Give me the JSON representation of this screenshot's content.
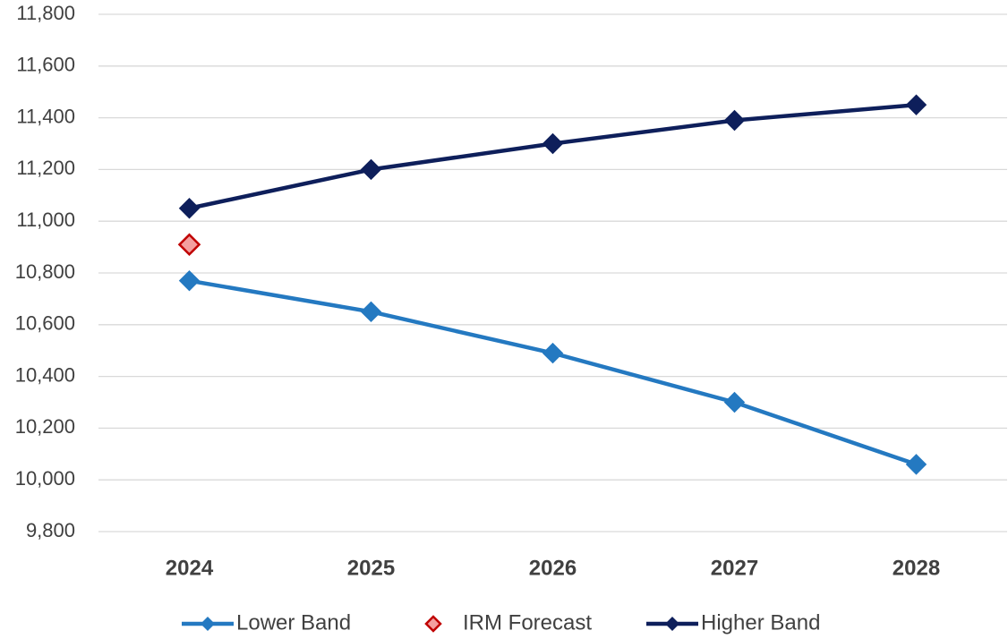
{
  "chart_data": {
    "type": "line",
    "categories": [
      "2024",
      "2025",
      "2026",
      "2027",
      "2028"
    ],
    "series": [
      {
        "name": "Lower Band",
        "color": "#2479c1",
        "line": true,
        "values": [
          10770,
          10650,
          10490,
          10300,
          10060
        ]
      },
      {
        "name": "IRM Forecast",
        "color": "#c00000",
        "fill": "#f4a0a0",
        "line": false,
        "values": [
          10910,
          null,
          null,
          null,
          null
        ]
      },
      {
        "name": "Higher Band",
        "color": "#0e1f5b",
        "line": true,
        "values": [
          11050,
          11200,
          11300,
          11390,
          11450
        ]
      }
    ],
    "ylim": [
      9800,
      11800
    ],
    "yticks": [
      {
        "value": 9800,
        "label": "9,800"
      },
      {
        "value": 10000,
        "label": "10,000"
      },
      {
        "value": 10200,
        "label": "10,200"
      },
      {
        "value": 10400,
        "label": "10,400"
      },
      {
        "value": 10600,
        "label": "10,600"
      },
      {
        "value": 10800,
        "label": "10,800"
      },
      {
        "value": 11000,
        "label": "11,000"
      },
      {
        "value": 11200,
        "label": "11,200"
      },
      {
        "value": 11400,
        "label": "11,400"
      },
      {
        "value": 11600,
        "label": "11,600"
      },
      {
        "value": 11800,
        "label": "11,800"
      }
    ],
    "grid": true,
    "legend": "bottom"
  }
}
